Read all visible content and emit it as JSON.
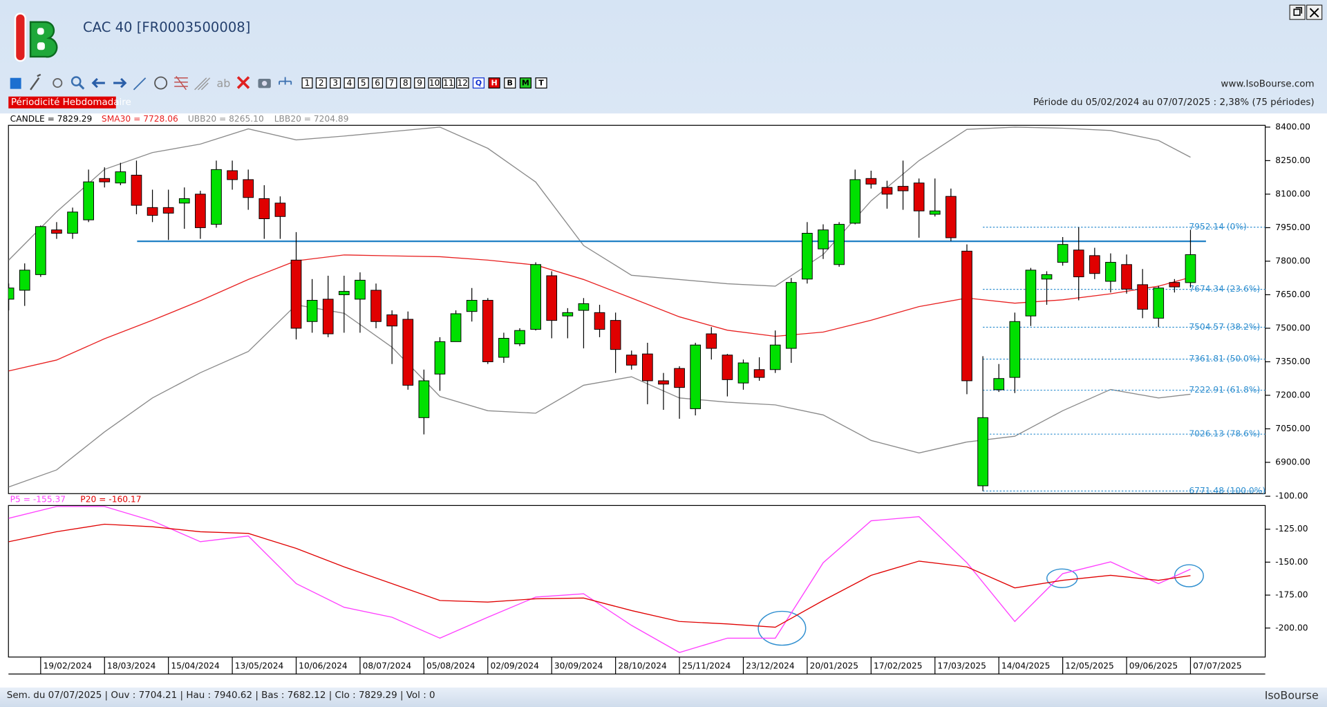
{
  "window": {
    "title": "CAC 40 [FR0003500008]",
    "site": "www.IsoBourse.com",
    "periodicity": "Périodicité Hebdomadaire",
    "period": "Période du 05/02/2024 au 07/07/2025 : 2,38% (75 périodes)",
    "status": "Sem. du 07/07/2025 | Ouv : 7704.21 | Hau : 7940.62 | Bas : 7682.12 | Clo : 7829.29 | Vol : 0",
    "brand": "IsoBourse"
  },
  "toolbar": {
    "periods": [
      "1",
      "2",
      "3",
      "4",
      "5",
      "6",
      "7",
      "8",
      "9",
      "10",
      "11",
      "12"
    ],
    "scales": [
      "Q",
      "H",
      "B",
      "M",
      "T"
    ],
    "text_tool": "ab"
  },
  "chart_data": [
    {
      "type": "candlestick",
      "categories": [
        null,
        null,
        "19/02/2024",
        null,
        null,
        null,
        "18/03/2024",
        null,
        null,
        null,
        "15/04/2024",
        null,
        null,
        null,
        "13/05/2024",
        null,
        null,
        null,
        "10/06/2024",
        null,
        null,
        null,
        "08/07/2024",
        null,
        null,
        null,
        "05/08/2024",
        null,
        null,
        null,
        "02/09/2024",
        null,
        null,
        null,
        "30/09/2024",
        null,
        null,
        null,
        "28/10/2024",
        null,
        null,
        null,
        "25/11/2024",
        null,
        null,
        null,
        "23/12/2024",
        null,
        null,
        null,
        "20/01/2025",
        null,
        null,
        null,
        "17/02/2025",
        null,
        null,
        null,
        "17/03/2025",
        null,
        null,
        null,
        "14/04/2025",
        null,
        null,
        null,
        "12/05/2025",
        null,
        null,
        null,
        "09/06/2025",
        null,
        null,
        null,
        "07/07/2025"
      ],
      "candles": {
        "name": "CANDLE = 7829.29",
        "up_color": "#00e000",
        "down_color": "#e00000",
        "open": [
          7630,
          7670,
          7740,
          7940,
          7925,
          7985,
          8170,
          8150,
          8185,
          8040,
          8040,
          8060,
          8100,
          7965,
          8205,
          8165,
          8080,
          8060,
          7805,
          7530,
          7630,
          7650,
          7630,
          7670,
          7560,
          7540,
          7100,
          7295,
          7440,
          7575,
          7625,
          7370,
          7430,
          7495,
          7735,
          7555,
          7580,
          7570,
          7535,
          7380,
          7385,
          7265,
          7320,
          7140,
          7475,
          7380,
          7255,
          7315,
          7315,
          7410,
          7720,
          7855,
          7785,
          7970,
          8170,
          8130,
          8135,
          8150,
          8010,
          8090,
          7845,
          6795,
          7225,
          7280,
          7555,
          7720,
          7795,
          7850,
          7825,
          7710,
          7785,
          7695,
          7545,
          7705,
          7704.21
        ],
        "high": [
          7700,
          7790,
          7960,
          7975,
          8040,
          8210,
          8220,
          8240,
          8250,
          8120,
          8120,
          8130,
          8115,
          8250,
          8250,
          8210,
          8140,
          8090,
          7930,
          7720,
          7735,
          7735,
          7750,
          7700,
          7580,
          7575,
          7315,
          7460,
          7580,
          7680,
          7635,
          7480,
          7500,
          7795,
          7755,
          7590,
          7635,
          7605,
          7570,
          7400,
          7435,
          7300,
          7330,
          7435,
          7505,
          7385,
          7360,
          7370,
          7490,
          7725,
          7975,
          7965,
          7975,
          8210,
          8205,
          8160,
          8250,
          8170,
          8170,
          8125,
          7875,
          7375,
          7340,
          7570,
          7770,
          7755,
          7908,
          7952.14,
          7860,
          7835,
          7830,
          7765,
          7690,
          7720,
          7940.62
        ],
        "low": [
          7580,
          7600,
          7730,
          7900,
          7900,
          7975,
          8130,
          8140,
          8010,
          7975,
          7895,
          7945,
          7900,
          7950,
          8120,
          8030,
          7900,
          7900,
          7450,
          7480,
          7460,
          7480,
          7480,
          7500,
          7340,
          7225,
          7025,
          7220,
          7440,
          7530,
          7340,
          7345,
          7420,
          7490,
          7455,
          7455,
          7410,
          7460,
          7300,
          7315,
          7160,
          7135,
          7095,
          7110,
          7360,
          7195,
          7225,
          7265,
          7300,
          7345,
          7700,
          7810,
          7775,
          7965,
          8125,
          8035,
          8030,
          7905,
          8000,
          7890,
          7205,
          6771.48,
          7215,
          7210,
          7510,
          7605,
          7780,
          7625,
          7720,
          7660,
          7655,
          7545,
          7505,
          7660,
          7682.12
        ],
        "close": [
          7680,
          7760,
          7955,
          7925,
          8020,
          8155,
          8155,
          8200,
          8050,
          8005,
          8015,
          8080,
          7950,
          8210,
          8165,
          8085,
          7990,
          8000,
          7500,
          7625,
          7475,
          7665,
          7715,
          7530,
          7510,
          7245,
          7265,
          7440,
          7565,
          7625,
          7350,
          7455,
          7490,
          7785,
          7535,
          7570,
          7610,
          7495,
          7405,
          7335,
          7265,
          7250,
          7235,
          7425,
          7410,
          7270,
          7345,
          7280,
          7425,
          7705,
          7925,
          7940,
          7965,
          8165,
          8145,
          8100,
          8115,
          8025,
          8025,
          7905,
          7265,
          7100,
          7275,
          7530,
          7760,
          7740,
          7875,
          7730,
          7745,
          7795,
          7675,
          7585,
          7680,
          7685,
          7829.29
        ]
      },
      "series": [
        {
          "name": "SMA30 = 7728.06",
          "color": "#e82020",
          "x": [
            0,
            3,
            6,
            9,
            12,
            15,
            18,
            21,
            24,
            27,
            30,
            33,
            36,
            39,
            42,
            45,
            48,
            51,
            54,
            57,
            60,
            63,
            66,
            69,
            72,
            74
          ],
          "values": [
            7309,
            7358,
            7453,
            7536,
            7623,
            7718,
            7802,
            7828,
            7824,
            7820,
            7805,
            7783,
            7718,
            7635,
            7551,
            7491,
            7464,
            7483,
            7536,
            7597,
            7635,
            7612,
            7627,
            7654,
            7688,
            7728.06
          ]
        },
        {
          "name": "UBB20 = 8265.10",
          "color": "#8a8a8a",
          "x": [
            0,
            3,
            6,
            9,
            12,
            15,
            18,
            21,
            24,
            27,
            30,
            33,
            36,
            39,
            42,
            45,
            48,
            51,
            54,
            57,
            60,
            63,
            66,
            69,
            72,
            74
          ],
          "values": [
            7805,
            8021,
            8211,
            8286,
            8324,
            8392,
            8343,
            8360,
            8380,
            8400,
            8305,
            8154,
            7870,
            7737,
            7718,
            7699,
            7688,
            7830,
            8070,
            8250,
            8390,
            8400,
            8395,
            8385,
            8340,
            8265.1
          ]
        },
        {
          "name": "LBB20 = 7204.89",
          "color": "#8a8a8a",
          "x": [
            0,
            3,
            6,
            9,
            12,
            15,
            18,
            21,
            24,
            27,
            30,
            33,
            36,
            39,
            42,
            45,
            48,
            51,
            54,
            57,
            60,
            63,
            66,
            69,
            72,
            74
          ],
          "values": [
            6790,
            6866,
            7036,
            7188,
            7301,
            7396,
            7605,
            7567,
            7415,
            7195,
            7131,
            7120,
            7245,
            7283,
            7188,
            7169,
            7157,
            7112,
            6998,
            6942,
            6991,
            7017,
            7131,
            7226,
            7188,
            7204.89
          ]
        }
      ],
      "horizontal_line": {
        "value": 7889,
        "color": "#1f7fc4"
      },
      "fibonacci": {
        "color": "#2f8fd0",
        "start": 61,
        "levels": [
          {
            "value": 7952.14,
            "label": "7952.14 (0%)"
          },
          {
            "value": 7674.34,
            "label": "7674.34 (23.6%)"
          },
          {
            "value": 7504.57,
            "label": "7504.57 (38.2%)"
          },
          {
            "value": 7361.81,
            "label": "7361.81 (50.0%)"
          },
          {
            "value": 7222.91,
            "label": "7222.91 (61.8%)"
          },
          {
            "value": 7026.13,
            "label": "7026.13 (78.6%)"
          },
          {
            "value": 6771.48,
            "label": "6771.48 (100.0%)"
          }
        ]
      },
      "ylim": [
        6760,
        8408
      ],
      "yticks": [
        {
          "value": 8400,
          "label": "8400.00"
        },
        {
          "value": 8250,
          "label": "8250.00"
        },
        {
          "value": 8100,
          "label": "8100.00"
        },
        {
          "value": 7950,
          "label": "7950.00"
        },
        {
          "value": 7800,
          "label": "7800.00"
        },
        {
          "value": 7650,
          "label": "7650.00"
        },
        {
          "value": 7500,
          "label": "7500.00"
        },
        {
          "value": 7350,
          "label": "7350.00"
        },
        {
          "value": 7200,
          "label": "7200.00"
        },
        {
          "value": 7050,
          "label": "7050.00"
        },
        {
          "value": 6900,
          "label": "6900.00"
        }
      ]
    },
    {
      "type": "line",
      "series": [
        {
          "name": "P5 = -155.37",
          "color": "#ff40ff",
          "x": [
            0,
            3,
            6,
            9,
            12,
            15,
            18,
            21,
            24,
            27,
            30,
            33,
            36,
            39,
            42,
            45,
            48,
            51,
            54,
            57,
            60,
            63,
            66,
            69,
            72,
            74
          ],
          "values": [
            -116.7,
            -107.8,
            -107.8,
            -118.6,
            -134.5,
            -130.1,
            -166.3,
            -184.2,
            -191.8,
            -207.7,
            -191.8,
            -176.5,
            -174,
            -198,
            -218.5,
            -207.7,
            -207.7,
            -150.4,
            -118.6,
            -115.5,
            -150.4,
            -195,
            -158.7,
            -149.8,
            -166.3,
            -155.37
          ]
        },
        {
          "name": "P20 = -160.17",
          "color": "#e00000",
          "x": [
            0,
            3,
            6,
            9,
            12,
            15,
            18,
            21,
            24,
            27,
            30,
            33,
            36,
            39,
            42,
            45,
            48,
            51,
            54,
            57,
            60,
            63,
            66,
            69,
            72,
            74
          ],
          "values": [
            -134.5,
            -126.9,
            -121.2,
            -123.1,
            -126.9,
            -128.2,
            -139.6,
            -153.6,
            -166.3,
            -179.1,
            -180.3,
            -177.8,
            -177.2,
            -186.7,
            -195,
            -196.9,
            -199.4,
            -179.1,
            -160,
            -149.2,
            -153.6,
            -169.5,
            -163.8,
            -160,
            -163.8,
            -160.17
          ]
        }
      ],
      "ylim": [
        -222,
        -107
      ],
      "yticks": [
        {
          "value": -100,
          "label": "-100.00"
        },
        {
          "value": -125,
          "label": "-125.00"
        },
        {
          "value": -150,
          "label": "-150.00"
        },
        {
          "value": -175,
          "label": "-175.00"
        },
        {
          "value": -200,
          "label": "-200.00"
        }
      ]
    }
  ]
}
